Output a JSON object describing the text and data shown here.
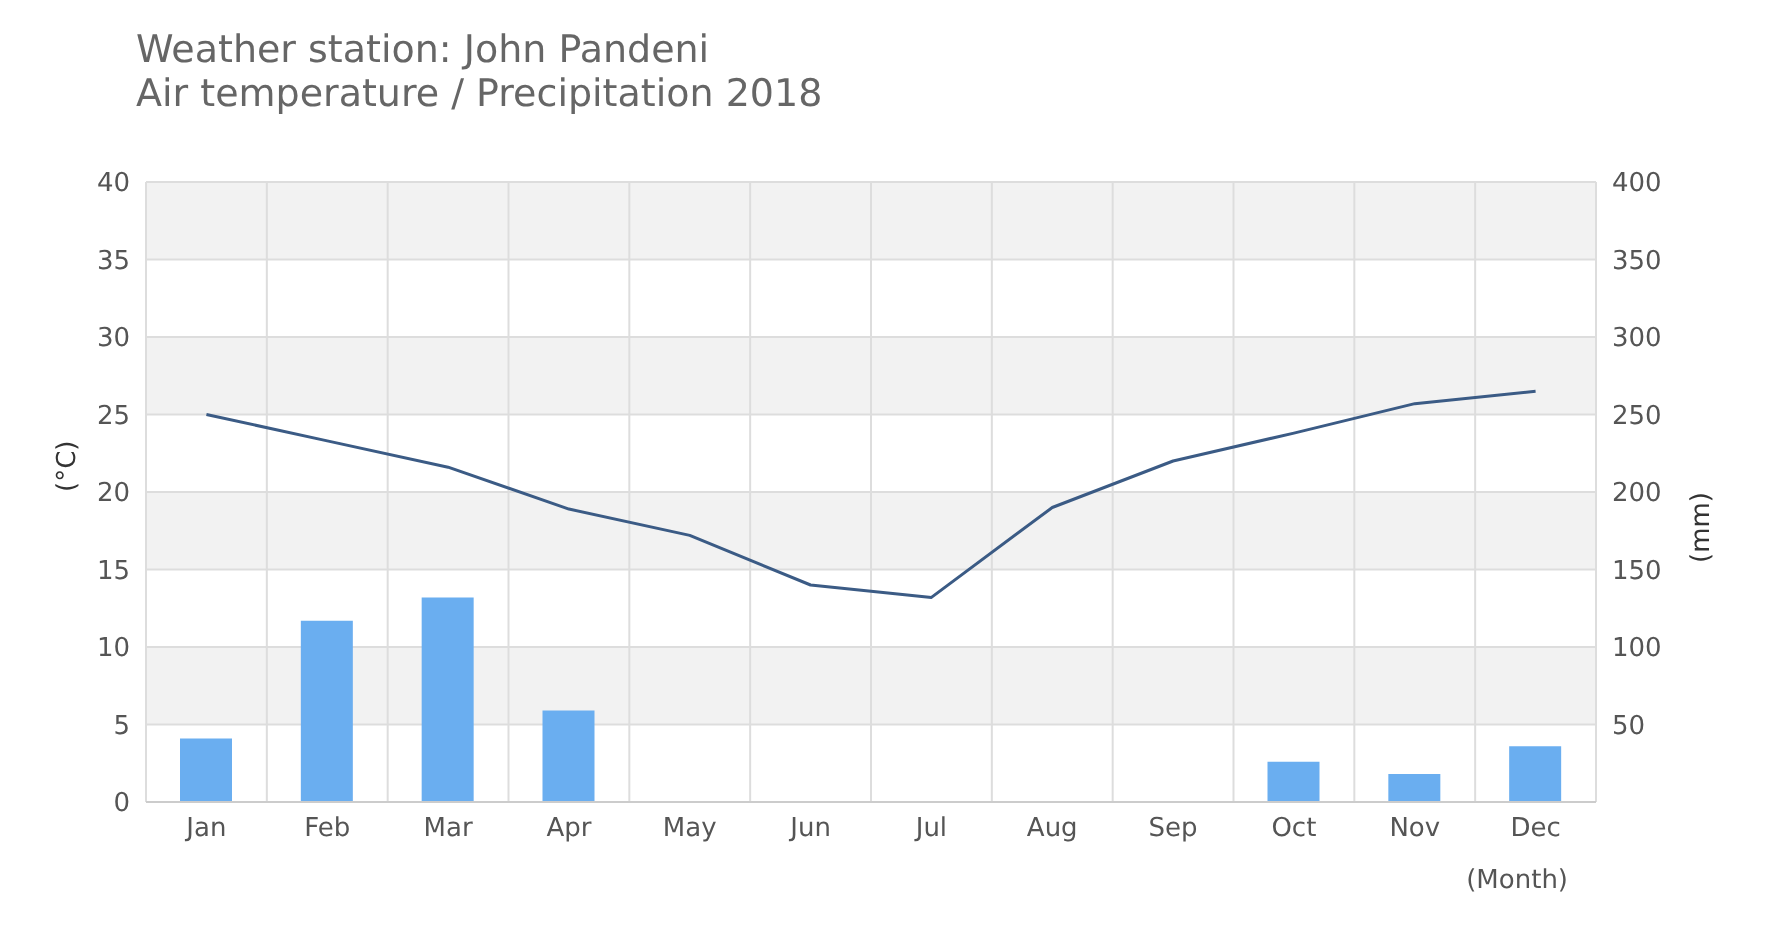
{
  "chart_data": {
    "type": "line",
    "title": "Weather station: John Pandeni",
    "subtitle": "Air temperature / Precipitation 2018",
    "xlabel": "(Month)",
    "ylabel": "(°C)",
    "y2label": "(mm)",
    "categories": [
      "Jan",
      "Feb",
      "Mar",
      "Apr",
      "May",
      "Jun",
      "Jul",
      "Aug",
      "Sep",
      "Oct",
      "Nov",
      "Dec"
    ],
    "series": [
      {
        "type": "bar",
        "axis": "y2",
        "color": "#6aaef0",
        "values": [
          41,
          117,
          132,
          59,
          null,
          null,
          null,
          null,
          null,
          26,
          18,
          36
        ]
      },
      {
        "axis": "y",
        "color": "#3b5b85",
        "values": [
          25,
          23.3,
          21.6,
          18.9,
          17.2,
          14,
          13.2,
          19,
          22,
          23.8,
          25.7,
          26.5
        ]
      }
    ],
    "ylim": [
      0,
      40
    ],
    "yticks": [
      0,
      5,
      10,
      15,
      20,
      25,
      30,
      35,
      40
    ],
    "y2lim": [
      0,
      400
    ],
    "y2ticks": [
      50,
      100,
      150,
      200,
      250,
      300,
      350,
      400
    ],
    "grid": true,
    "marker": "none",
    "line_style": "solid"
  }
}
